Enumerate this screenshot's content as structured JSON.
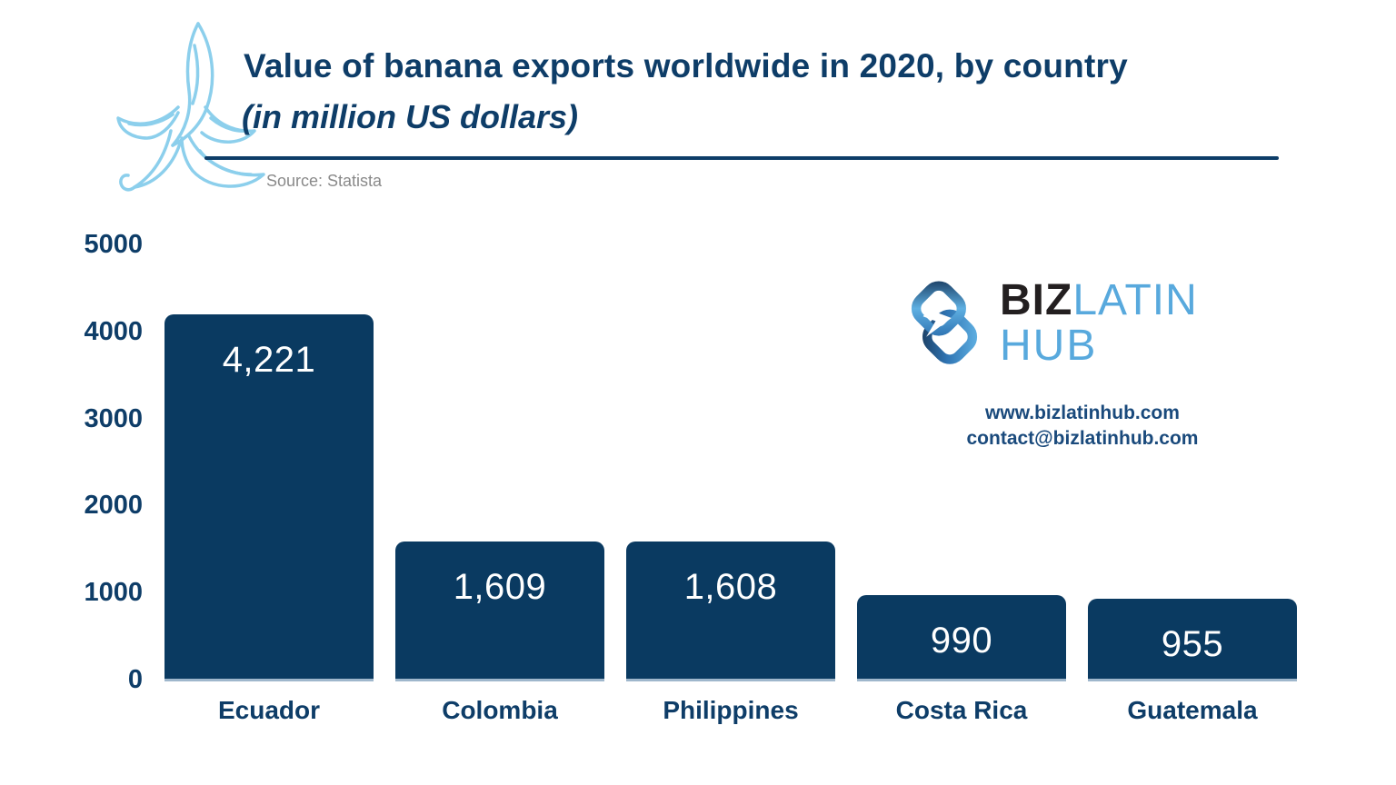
{
  "header": {
    "title": "Value of banana exports worldwide in 2020, by country",
    "subtitle": "(in million US dollars)",
    "source": "Source: Statista"
  },
  "branding": {
    "logo_part_biz": "BIZ",
    "logo_part_latin": "LATIN",
    "logo_part_hub": "HUB",
    "website": "www.bizlatinhub.com",
    "email": "contact@bizlatinhub.com"
  },
  "colors": {
    "navy_text": "#0e3d68",
    "bar_fill": "#0a3a61",
    "value_label": "#ffffff",
    "banana_outline": "#8ccfec",
    "logo_dark_blue": "#1d4268",
    "logo_medium_blue": "#2f74b3",
    "logo_light_blue": "#58a9dd",
    "logo_black": "#231f20",
    "link_navy": "#1a4a7c",
    "source_gray": "#8a8a8a"
  },
  "chart_data": {
    "type": "bar",
    "title": "Value of banana exports worldwide in 2020, by country",
    "units": "million US dollars",
    "source": "Statista",
    "categories": [
      "Ecuador",
      "Colombia",
      "Philippines",
      "Costa Rica",
      "Guatemala"
    ],
    "values": [
      4221,
      1609,
      1608,
      990,
      955
    ],
    "value_labels": [
      "4,221",
      "1,609",
      "1,608",
      "990",
      "955"
    ],
    "yticks": [
      5000,
      4000,
      3000,
      2000,
      1000,
      0
    ],
    "ylim": [
      0,
      5000
    ],
    "grid": false,
    "legend": false,
    "bar_color": "#0a3a61",
    "value_label_color": "#ffffff",
    "axis_label_color": "#0e3d68"
  }
}
